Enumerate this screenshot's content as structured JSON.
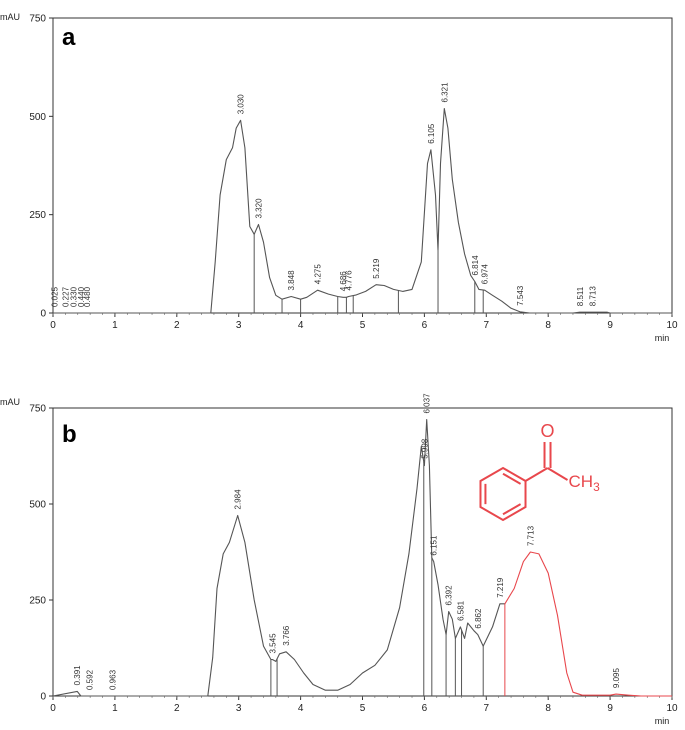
{
  "chart_data": [
    {
      "type": "line",
      "panel": "a",
      "xunit": "min",
      "yunit": "mAU",
      "xlim": [
        0,
        10
      ],
      "ylim": [
        0,
        750
      ],
      "xticks": [
        0,
        1,
        2,
        3,
        4,
        5,
        6,
        7,
        8,
        9,
        10
      ],
      "yticks": [
        0,
        250,
        500,
        750
      ],
      "grid": false,
      "series": [
        {
          "color": "#555555",
          "points": [
            [
              0,
              0
            ],
            [
              2.55,
              0
            ],
            [
              2.62,
              130
            ],
            [
              2.7,
              300
            ],
            [
              2.8,
              390
            ],
            [
              2.9,
              420
            ],
            [
              2.96,
              470
            ],
            [
              3.03,
              490
            ],
            [
              3.1,
              420
            ],
            [
              3.18,
              220
            ],
            [
              3.25,
              200
            ],
            [
              3.32,
              225
            ],
            [
              3.4,
              180
            ],
            [
              3.5,
              90
            ],
            [
              3.6,
              45
            ],
            [
              3.7,
              35
            ],
            [
              3.848,
              42
            ],
            [
              4.0,
              35
            ],
            [
              4.1,
              40
            ],
            [
              4.275,
              58
            ],
            [
              4.45,
              48
            ],
            [
              4.6,
              42
            ],
            [
              4.686,
              40
            ],
            [
              4.74,
              40
            ],
            [
              4.776,
              42
            ],
            [
              4.9,
              46
            ],
            [
              5.05,
              55
            ],
            [
              5.219,
              72
            ],
            [
              5.35,
              70
            ],
            [
              5.5,
              60
            ],
            [
              5.65,
              55
            ],
            [
              5.8,
              60
            ],
            [
              5.95,
              130
            ],
            [
              6.05,
              380
            ],
            [
              6.105,
              415
            ],
            [
              6.18,
              300
            ],
            [
              6.22,
              160
            ],
            [
              6.26,
              380
            ],
            [
              6.321,
              520
            ],
            [
              6.38,
              470
            ],
            [
              6.45,
              340
            ],
            [
              6.55,
              230
            ],
            [
              6.65,
              150
            ],
            [
              6.75,
              95
            ],
            [
              6.814,
              80
            ],
            [
              6.88,
              60
            ],
            [
              6.974,
              58
            ],
            [
              7.1,
              45
            ],
            [
              7.25,
              30
            ],
            [
              7.4,
              12
            ],
            [
              7.543,
              3
            ],
            [
              7.7,
              0
            ],
            [
              8.4,
              0
            ],
            [
              8.511,
              2
            ],
            [
              8.713,
              2
            ],
            [
              8.95,
              2
            ],
            [
              9.0,
              0
            ],
            [
              10,
              0
            ]
          ],
          "peaks": [
            {
              "t": 0.025,
              "label": "0.025"
            },
            {
              "t": 0.2,
              "label": "0.227"
            },
            {
              "t": 0.33,
              "label": "0.330"
            },
            {
              "t": 0.45,
              "label": "0.440"
            },
            {
              "t": 0.55,
              "label": "0.480"
            },
            {
              "t": 3.03,
              "label": "3.030"
            },
            {
              "t": 3.32,
              "label": "3.320"
            },
            {
              "t": 3.848,
              "label": "3.848"
            },
            {
              "t": 4.275,
              "label": "4.275"
            },
            {
              "t": 4.686,
              "label": "4.686"
            },
            {
              "t": 4.776,
              "label": "4.776"
            },
            {
              "t": 5.219,
              "label": "5.219"
            },
            {
              "t": 6.105,
              "label": "6.105"
            },
            {
              "t": 6.321,
              "label": "6.321"
            },
            {
              "t": 6.814,
              "label": "6.814"
            },
            {
              "t": 6.974,
              "label": "6.974"
            },
            {
              "t": 7.543,
              "label": "7.543"
            },
            {
              "t": 8.511,
              "label": "8.511"
            },
            {
              "t": 8.713,
              "label": "8.713"
            }
          ],
          "drop_lines": [
            3.25,
            3.7,
            4.0,
            4.6,
            4.74,
            4.85,
            5.58,
            6.22,
            6.814,
            6.95
          ]
        }
      ]
    },
    {
      "type": "line",
      "panel": "b",
      "xunit": "min",
      "yunit": "mAU",
      "xlim": [
        0,
        10
      ],
      "ylim": [
        0,
        750
      ],
      "xticks": [
        0,
        1,
        2,
        3,
        4,
        5,
        6,
        7,
        8,
        9,
        10
      ],
      "yticks": [
        0,
        250,
        500,
        750
      ],
      "grid": false,
      "series": [
        {
          "color": "#555555",
          "points": [
            [
              0,
              0
            ],
            [
              0.391,
              12
            ],
            [
              0.45,
              0
            ],
            [
              2.5,
              0
            ],
            [
              2.58,
              100
            ],
            [
              2.65,
              280
            ],
            [
              2.75,
              370
            ],
            [
              2.85,
              400
            ],
            [
              2.984,
              470
            ],
            [
              3.1,
              400
            ],
            [
              3.25,
              250
            ],
            [
              3.4,
              130
            ],
            [
              3.52,
              95
            ],
            [
              3.545,
              95
            ],
            [
              3.6,
              90
            ],
            [
              3.66,
              110
            ],
            [
              3.766,
              115
            ],
            [
              3.9,
              95
            ],
            [
              4.05,
              60
            ],
            [
              4.2,
              30
            ],
            [
              4.4,
              15
            ],
            [
              4.6,
              15
            ],
            [
              4.8,
              30
            ],
            [
              5.0,
              60
            ],
            [
              5.2,
              80
            ],
            [
              5.4,
              120
            ],
            [
              5.6,
              230
            ],
            [
              5.75,
              370
            ],
            [
              5.88,
              540
            ],
            [
              5.95,
              650
            ],
            [
              6.0,
              600
            ],
            [
              6.037,
              720
            ],
            [
              6.08,
              600
            ],
            [
              6.12,
              360
            ],
            [
              6.151,
              350
            ],
            [
              6.22,
              290
            ],
            [
              6.3,
              200
            ],
            [
              6.35,
              160
            ],
            [
              6.392,
              220
            ],
            [
              6.45,
              200
            ],
            [
              6.5,
              150
            ],
            [
              6.581,
              180
            ],
            [
              6.65,
              150
            ],
            [
              6.7,
              190
            ],
            [
              6.8,
              170
            ],
            [
              6.862,
              160
            ],
            [
              6.95,
              130
            ],
            [
              7.1,
              180
            ],
            [
              7.219,
              240
            ],
            [
              7.3,
              240
            ]
          ]
        },
        {
          "color": "#e8474c",
          "points": [
            [
              7.3,
              240
            ],
            [
              7.45,
              280
            ],
            [
              7.6,
              350
            ],
            [
              7.713,
              375
            ],
            [
              7.85,
              370
            ],
            [
              8.0,
              320
            ],
            [
              8.15,
              210
            ],
            [
              8.3,
              60
            ],
            [
              8.4,
              10
            ],
            [
              8.55,
              2
            ],
            [
              9.0,
              2
            ],
            [
              9.095,
              5
            ],
            [
              9.3,
              2
            ],
            [
              9.5,
              0
            ],
            [
              10,
              0
            ]
          ]
        }
      ],
      "peaks": [
        {
          "t": 0.391,
          "label": "0.391"
        },
        {
          "t": 0.592,
          "label": "0.592"
        },
        {
          "t": 0.963,
          "label": "0.963"
        },
        {
          "t": 2.984,
          "label": "2.984"
        },
        {
          "t": 3.545,
          "label": "3.545"
        },
        {
          "t": 3.766,
          "label": "3.766"
        },
        {
          "t": 5.998,
          "label": "5.998"
        },
        {
          "t": 6.037,
          "label": "6.037"
        },
        {
          "t": 6.151,
          "label": "6.151"
        },
        {
          "t": 6.392,
          "label": "6.392"
        },
        {
          "t": 6.581,
          "label": "6.581"
        },
        {
          "t": 6.862,
          "label": "6.862"
        },
        {
          "t": 7.219,
          "label": "7.219",
          "color": "#e8474c"
        },
        {
          "t": 7.713,
          "label": "7.713",
          "color": "#e8474c"
        },
        {
          "t": 9.095,
          "label": "9.095"
        }
      ],
      "drop_lines": [
        3.52,
        3.62,
        5.99,
        6.12,
        6.35,
        6.5,
        6.6,
        6.95,
        7.3
      ],
      "inset_molecule": {
        "name": "acetophenone",
        "substituent_label": "CH3",
        "atom_label": "O",
        "color": "#e8474c"
      }
    }
  ]
}
